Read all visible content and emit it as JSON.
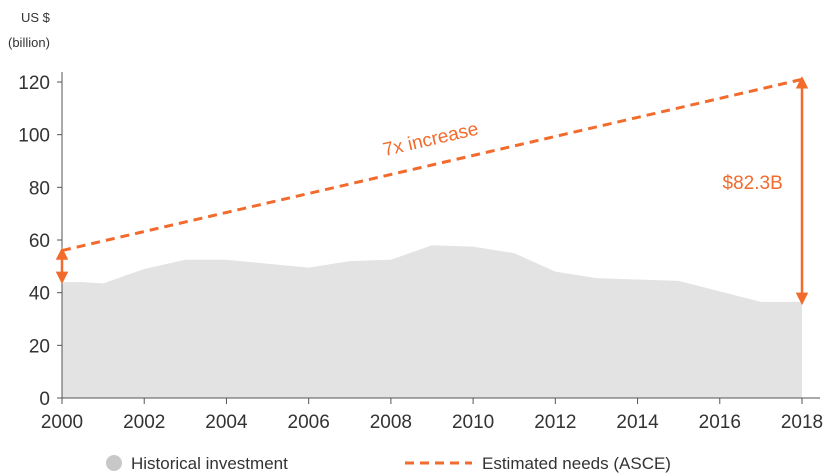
{
  "chart_data": {
    "type": "area",
    "title": "",
    "ylabel_line1": "US $",
    "ylabel_line2": "(billion)",
    "xlabel": "",
    "xlim": [
      2000,
      2018
    ],
    "ylim": [
      0,
      120
    ],
    "x_ticks": [
      2000,
      2002,
      2004,
      2006,
      2008,
      2010,
      2012,
      2014,
      2016,
      2018
    ],
    "y_ticks": [
      0,
      20,
      40,
      60,
      80,
      100,
      120
    ],
    "grid": false,
    "legend_position": "bottom",
    "series": [
      {
        "name": "Historical investment",
        "type": "area",
        "color": "#e3e3e3",
        "x": [
          2000,
          2000.5,
          2001,
          2002,
          2003,
          2004,
          2005,
          2006,
          2007,
          2008,
          2009,
          2010,
          2011,
          2012,
          2013,
          2014,
          2015,
          2016,
          2017,
          2018
        ],
        "y": [
          44,
          44,
          43.5,
          49,
          52.5,
          52.5,
          51,
          49.5,
          52,
          52.5,
          58,
          57.5,
          55,
          48,
          45.5,
          45,
          44.5,
          40.5,
          36.5,
          36.5
        ]
      },
      {
        "name": "Estimated needs (ASCE)",
        "type": "line",
        "style": "dashed",
        "color": "#f26b2c",
        "x": [
          2000,
          2018
        ],
        "y": [
          56,
          121
        ]
      }
    ],
    "annotations": [
      {
        "text": "7x increase",
        "x": 2009,
        "y": 96
      },
      {
        "text": "$82.3B",
        "x": 2016.8,
        "y": 82
      }
    ],
    "gap_arrows": [
      {
        "x": 2000,
        "y_from": 44.5,
        "y_to": 56
      },
      {
        "x": 2018,
        "y_from": 36.5,
        "y_to": 121
      }
    ]
  }
}
